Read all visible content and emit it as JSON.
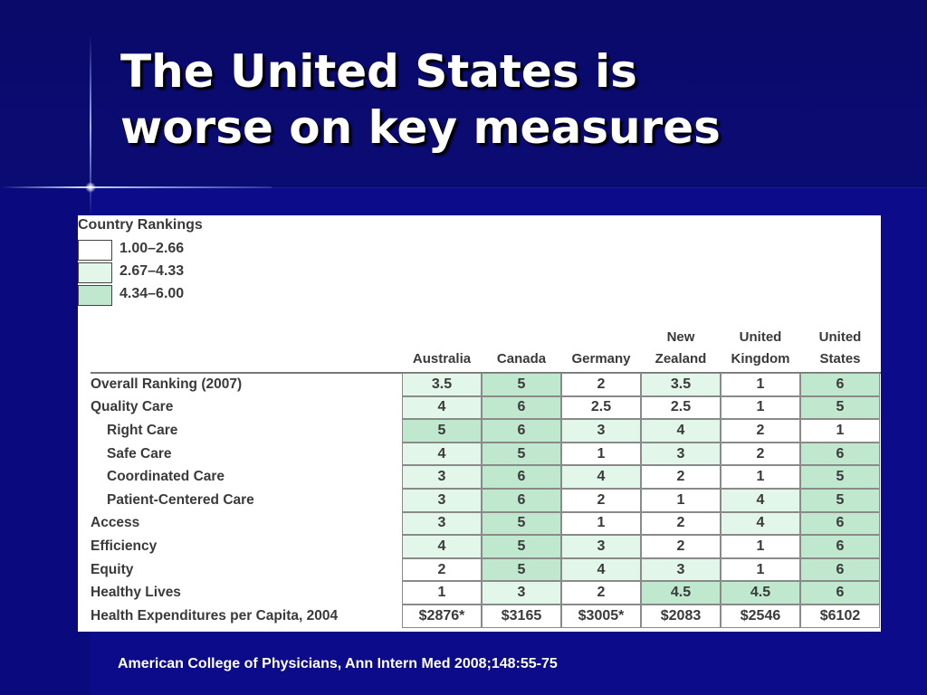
{
  "slide": {
    "title_line1": "The United States is",
    "title_line2": "worse on key measures",
    "footer": "American College of Physicians, Ann Intern Med 2008;148:55-75"
  },
  "colors": {
    "background": "#0c0c8a",
    "rank_low": "#ffffff",
    "rank_mid": "#e2f6ea",
    "rank_high": "#bfe8cf"
  },
  "legend": {
    "title": "Country Rankings",
    "items": [
      {
        "label": "1.00–2.66",
        "color": "#ffffff"
      },
      {
        "label": "2.67–4.33",
        "color": "#e2f6ea"
      },
      {
        "label": "4.34–6.00",
        "color": "#bfe8cf"
      }
    ]
  },
  "table": {
    "columns": [
      [
        "Australia"
      ],
      [
        "Canada"
      ],
      [
        "Germany"
      ],
      [
        "New",
        "Zealand"
      ],
      [
        "United",
        "Kingdom"
      ],
      [
        "United",
        "States"
      ]
    ],
    "rows": [
      {
        "label": "Overall Ranking (2007)",
        "indent": false,
        "values": [
          "3.5",
          "5",
          "2",
          "3.5",
          "1",
          "6"
        ]
      },
      {
        "label": "Quality Care",
        "indent": false,
        "values": [
          "4",
          "6",
          "2.5",
          "2.5",
          "1",
          "5"
        ]
      },
      {
        "label": "Right Care",
        "indent": true,
        "values": [
          "5",
          "6",
          "3",
          "4",
          "2",
          "1"
        ]
      },
      {
        "label": "Safe Care",
        "indent": true,
        "values": [
          "4",
          "5",
          "1",
          "3",
          "2",
          "6"
        ]
      },
      {
        "label": "Coordinated Care",
        "indent": true,
        "values": [
          "3",
          "6",
          "4",
          "2",
          "1",
          "5"
        ]
      },
      {
        "label": "Patient-Centered Care",
        "indent": true,
        "values": [
          "3",
          "6",
          "2",
          "1",
          "4",
          "5"
        ]
      },
      {
        "label": "Access",
        "indent": false,
        "values": [
          "3",
          "5",
          "1",
          "2",
          "4",
          "6"
        ]
      },
      {
        "label": "Efficiency",
        "indent": false,
        "values": [
          "4",
          "5",
          "3",
          "2",
          "1",
          "6"
        ]
      },
      {
        "label": "Equity",
        "indent": false,
        "values": [
          "2",
          "5",
          "4",
          "3",
          "1",
          "6"
        ]
      },
      {
        "label": "Healthy Lives",
        "indent": false,
        "values": [
          "1",
          "3",
          "2",
          "4.5",
          "4.5",
          "6"
        ]
      },
      {
        "label": "Health Expenditures per Capita, 2004",
        "indent": false,
        "values": [
          "$2876*",
          "$3165",
          "$3005*",
          "$2083",
          "$2546",
          "$6102"
        ]
      }
    ]
  }
}
